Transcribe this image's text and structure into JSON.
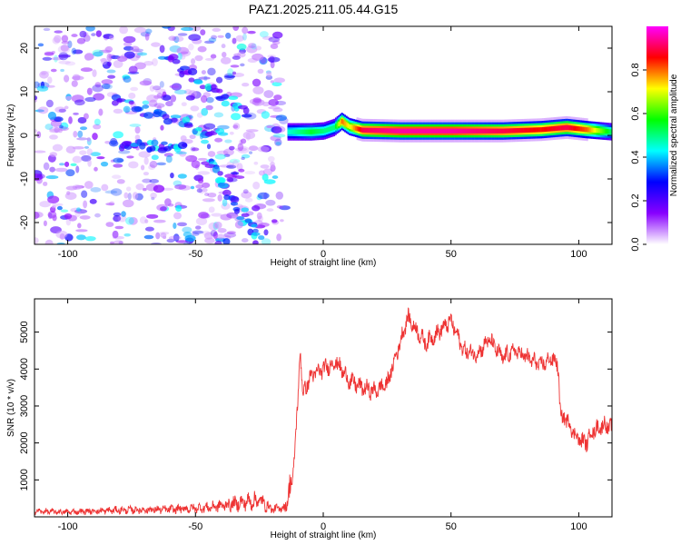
{
  "figure": {
    "title": "PAZ1.2025.211.05.44.G15"
  },
  "chart_data": [
    {
      "type": "heatmap",
      "title": "PAZ1.2025.211.05.44.G15",
      "xlabel": "Height of straight line (km)",
      "ylabel": "Frequency (Hz)",
      "xlim": [
        -113,
        113
      ],
      "ylim": [
        -25,
        25
      ],
      "xticks": [
        -100,
        -50,
        0,
        50,
        100
      ],
      "yticks": [
        -20,
        -10,
        0,
        10,
        20
      ],
      "colorbar": {
        "label": "Normalized spectral amplitude",
        "range": [
          0.0,
          1.0
        ],
        "ticks": [
          0.0,
          0.2,
          0.4,
          0.6,
          0.8
        ],
        "colormap": [
          "#ffffff",
          "#8800ff",
          "#0000ff",
          "#00ffff",
          "#00ff00",
          "#ffff00",
          "#ff0000",
          "#ff00ff"
        ]
      },
      "ridge": [
        {
          "x": -14,
          "freq": 0.8,
          "amp": 0.45
        },
        {
          "x": -5,
          "freq": 0.8,
          "amp": 0.55
        },
        {
          "x": 0,
          "freq": 1.0,
          "amp": 0.5
        },
        {
          "x": 4,
          "freq": 1.8,
          "amp": 0.5
        },
        {
          "x": 7,
          "freq": 3.2,
          "amp": 0.8
        },
        {
          "x": 10,
          "freq": 2.0,
          "amp": 0.7
        },
        {
          "x": 15,
          "freq": 1.2,
          "amp": 0.9
        },
        {
          "x": 30,
          "freq": 1.0,
          "amp": 0.95
        },
        {
          "x": 50,
          "freq": 1.0,
          "amp": 0.95
        },
        {
          "x": 70,
          "freq": 1.0,
          "amp": 0.9
        },
        {
          "x": 85,
          "freq": 1.3,
          "amp": 0.85
        },
        {
          "x": 95,
          "freq": 1.8,
          "amp": 0.9
        },
        {
          "x": 103,
          "freq": 1.3,
          "amp": 0.8
        },
        {
          "x": 113,
          "freq": 0.8,
          "amp": 0.5
        }
      ],
      "noise_region": {
        "x_range": [
          -113,
          -15
        ],
        "freq_range": [
          -25,
          25
        ],
        "amp_range": [
          0.05,
          0.45
        ]
      }
    },
    {
      "type": "line",
      "xlabel": "Height of straight line (km)",
      "ylabel": "SNR (10 * v/v)",
      "xlim": [
        -113,
        113
      ],
      "ylim": [
        0,
        5900
      ],
      "xticks": [
        -100,
        -50,
        0,
        50,
        100
      ],
      "yticks": [
        1000,
        2000,
        3000,
        4000,
        5000
      ],
      "color": "#ee3333",
      "series": [
        {
          "x": [
            -113,
            -100,
            -80,
            -60,
            -45,
            -35,
            -25,
            -20,
            -15,
            -12,
            -10,
            -9,
            -8,
            -5,
            0,
            5,
            10,
            15,
            20,
            25,
            30,
            33,
            35,
            40,
            45,
            50,
            55,
            60,
            65,
            70,
            75,
            80,
            85,
            90,
            92,
            93,
            95,
            97,
            100,
            103,
            105,
            110,
            113
          ],
          "y": [
            150,
            130,
            180,
            200,
            250,
            350,
            450,
            200,
            250,
            1000,
            3000,
            4600,
            3300,
            3800,
            4000,
            4200,
            3700,
            3500,
            3400,
            3600,
            4700,
            5400,
            5200,
            4700,
            5000,
            5300,
            4500,
            4400,
            4800,
            4300,
            4500,
            4300,
            4100,
            4300,
            4000,
            2600,
            2700,
            2400,
            2100,
            2000,
            2300,
            2500,
            2400
          ]
        }
      ]
    }
  ]
}
